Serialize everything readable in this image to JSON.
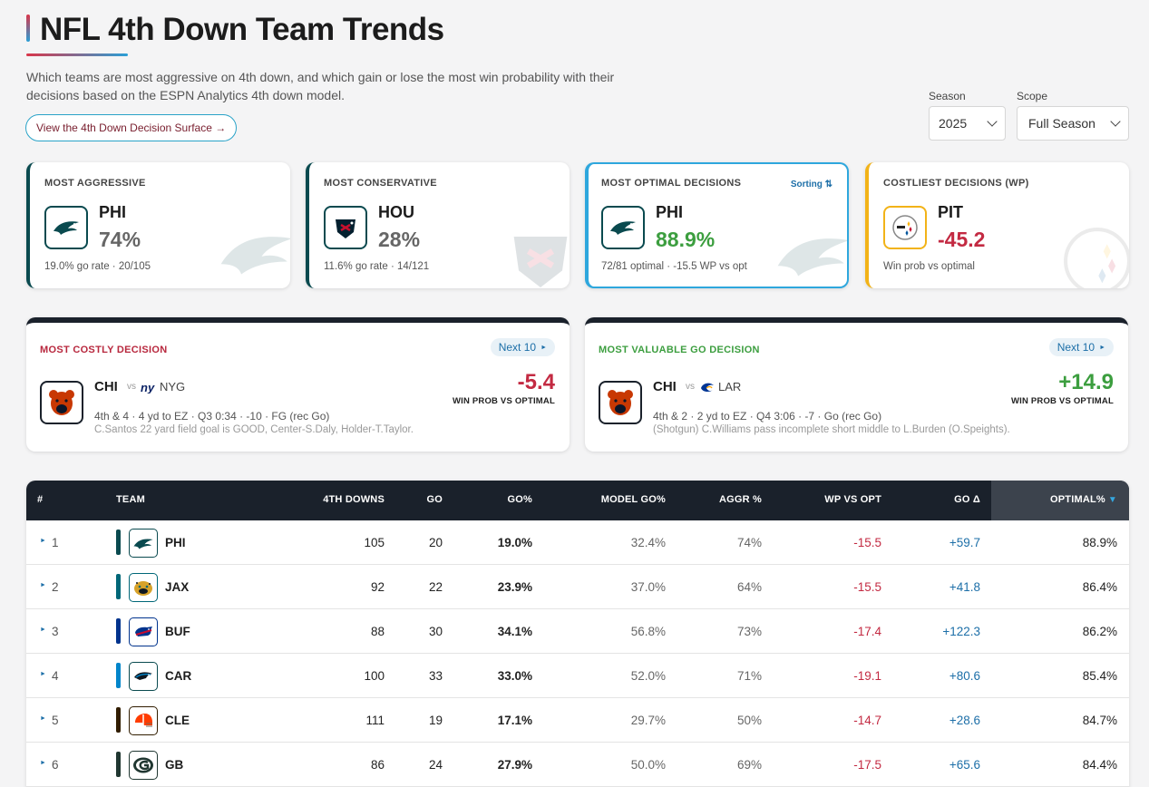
{
  "header": {
    "title": "NFL 4th Down Team Trends",
    "subtitle": "Which teams are most aggressive on 4th down, and which gain or lose the most win probability with their decisions based on the ESPN Analytics 4th down model.",
    "surface_link": "View the 4th Down Decision Surface →"
  },
  "filters": {
    "season_label": "Season",
    "season_value": "2025",
    "scope_label": "Scope",
    "scope_value": "Full Season"
  },
  "stat_cards": [
    {
      "label": "MOST AGGRESSIVE",
      "team": "PHI",
      "value": "74%",
      "sub": "19.0% go rate · 20/105"
    },
    {
      "label": "MOST CONSERVATIVE",
      "team": "HOU",
      "value": "28%",
      "sub": "11.6% go rate · 14/121"
    },
    {
      "label": "MOST OPTIMAL DECISIONS",
      "sorting": "Sorting ⇅",
      "team": "PHI",
      "value": "88.9%",
      "sub": "72/81 optimal · -15.5 WP vs opt"
    },
    {
      "label": "COSTLIEST DECISIONS (WP)",
      "team": "PIT",
      "value": "-45.2",
      "sub": "Win prob vs optimal"
    }
  ],
  "decisions": [
    {
      "label": "MOST COSTLY DECISION",
      "next": "Next 10",
      "team": "CHI",
      "vs": "vs",
      "opponent": "NYG",
      "situation": "4th & 4 · 4 yd to EZ · Q3 0:34 · -10 · FG (rec Go)",
      "play": "C.Santos 22 yard field goal is GOOD, Center-S.Daly, Holder-T.Taylor.",
      "value": "-5.4",
      "value_label": "WIN PROB VS OPTIMAL"
    },
    {
      "label": "MOST VALUABLE GO DECISION",
      "next": "Next 10",
      "team": "CHI",
      "vs": "vs",
      "opponent": "LAR",
      "situation": "4th & 2 · 2 yd to EZ · Q4 3:06 · -7 · Go (rec Go)",
      "play": "(Shotgun) C.Williams pass incomplete short middle to L.Burden (O.Speights).",
      "value": "+14.9",
      "value_label": "WIN PROB VS OPTIMAL"
    }
  ],
  "table": {
    "headers": [
      "#",
      "TEAM",
      "4TH DOWNS",
      "GO",
      "GO%",
      "MODEL GO%",
      "AGGR %",
      "WP VS OPT",
      "GO Δ",
      "OPTIMAL%"
    ],
    "sorted_indicator": "▼",
    "rows": [
      {
        "rank": "1",
        "team": "PHI",
        "downs": "105",
        "go": "20",
        "go_pct": "19.0%",
        "model_go": "32.4%",
        "aggr": "74%",
        "wp": "-15.5",
        "go_delta": "+59.7",
        "optimal": "88.9%"
      },
      {
        "rank": "2",
        "team": "JAX",
        "downs": "92",
        "go": "22",
        "go_pct": "23.9%",
        "model_go": "37.0%",
        "aggr": "64%",
        "wp": "-15.5",
        "go_delta": "+41.8",
        "optimal": "86.4%"
      },
      {
        "rank": "3",
        "team": "BUF",
        "downs": "88",
        "go": "30",
        "go_pct": "34.1%",
        "model_go": "56.8%",
        "aggr": "73%",
        "wp": "-17.4",
        "go_delta": "+122.3",
        "optimal": "86.2%"
      },
      {
        "rank": "4",
        "team": "CAR",
        "downs": "100",
        "go": "33",
        "go_pct": "33.0%",
        "model_go": "52.0%",
        "aggr": "71%",
        "wp": "-19.1",
        "go_delta": "+80.6",
        "optimal": "85.4%"
      },
      {
        "rank": "5",
        "team": "CLE",
        "downs": "111",
        "go": "19",
        "go_pct": "17.1%",
        "model_go": "29.7%",
        "aggr": "50%",
        "wp": "-14.7",
        "go_delta": "+28.6",
        "optimal": "84.7%"
      },
      {
        "rank": "6",
        "team": "GB",
        "downs": "86",
        "go": "24",
        "go_pct": "27.9%",
        "model_go": "50.0%",
        "aggr": "69%",
        "wp": "-17.5",
        "go_delta": "+65.6",
        "optimal": "84.4%"
      }
    ]
  },
  "colors": {
    "header_dark": "#1a212b",
    "negative": "#c32a42",
    "positive_green": "#3c9e3f",
    "positive_blue": "#1d6fa8",
    "team_PHI": "#0a4a4f",
    "team_JAX": "#006778",
    "team_BUF": "#00338d",
    "team_CAR": "#0085ca",
    "team_CLE": "#311d00",
    "team_GB": "#203731"
  }
}
